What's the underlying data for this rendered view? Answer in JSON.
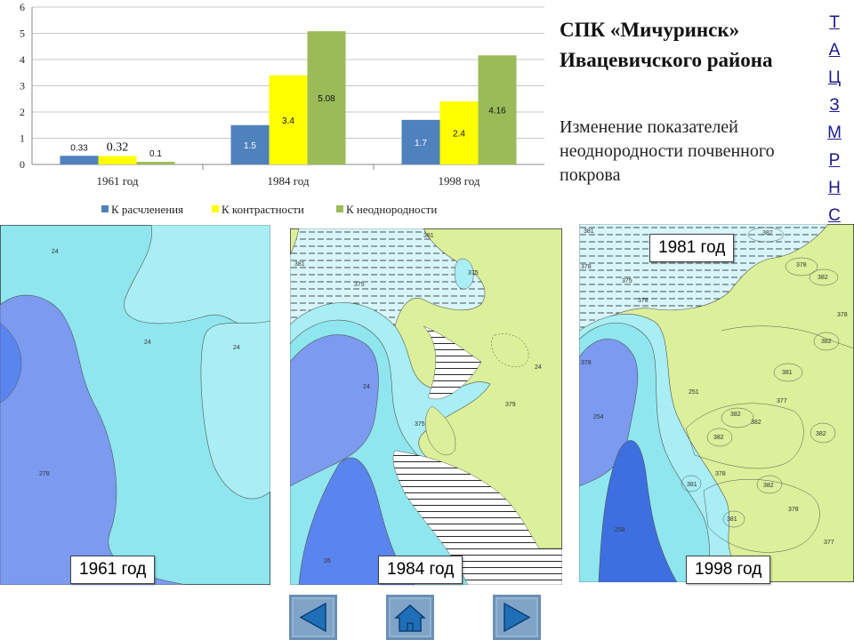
{
  "chart_data": {
    "type": "bar",
    "categories": [
      "1961 год",
      "1984 год",
      "1998 год"
    ],
    "series": [
      {
        "name": "К расчленения",
        "color": "#4f81bd",
        "values": [
          0.33,
          1.5,
          1.7
        ]
      },
      {
        "name": "К контрастности",
        "color": "#ffff00",
        "values": [
          0.32,
          3.4,
          2.4
        ]
      },
      {
        "name": "К неоднородности",
        "color": "#9bbb59",
        "values": [
          0.1,
          5.08,
          4.16
        ]
      }
    ],
    "data_labels": [
      [
        "0.33",
        "1.5",
        "1.7"
      ],
      [
        "0.32",
        "3.4",
        "2.4"
      ],
      [
        "0.1",
        "5.08",
        "4.16"
      ]
    ],
    "ylim": [
      0,
      6
    ],
    "yticks": [
      "0",
      "1",
      "2",
      "3",
      "4",
      "5",
      "6"
    ],
    "grid": true,
    "legend_position": "bottom"
  },
  "header": {
    "title": "СПК «Мичуринск» Ивацевичского района",
    "subtitle": "Изменение показателей неоднородности почвенного покрова"
  },
  "side_menu": [
    "Т",
    "А",
    "Ц",
    "З",
    "М",
    "Р",
    "Н",
    "С"
  ],
  "maps": [
    {
      "label": "1961 год",
      "codes": [
        "24",
        "24",
        "24",
        "278"
      ]
    },
    {
      "label": "1984 год",
      "codes": [
        "381",
        "381",
        "375",
        "375",
        "24",
        "379",
        "375",
        "24",
        "26"
      ]
    },
    {
      "label": "1998 год",
      "inset_label": "1981 год",
      "codes": [
        "381",
        "382",
        "378",
        "375",
        "378",
        "378",
        "382",
        "378",
        "382",
        "378",
        "381",
        "251",
        "377",
        "254",
        "382",
        "382",
        "382",
        "382",
        "381",
        "378",
        "382",
        "378",
        "381",
        "258",
        "377"
      ]
    }
  ],
  "nav": {
    "prev": "prev-arrow-icon",
    "home": "home-icon",
    "next": "next-arrow-icon"
  },
  "colors": {
    "lake_blue": "#7b9af0",
    "medium_blue": "#5a84ee",
    "cyan": "#8fe6ef",
    "light_cyan": "#a8eef4",
    "yellow_green": "#dcef9a",
    "nav_button": "#7fa4c8",
    "nav_icon": "#1f6fb8"
  }
}
